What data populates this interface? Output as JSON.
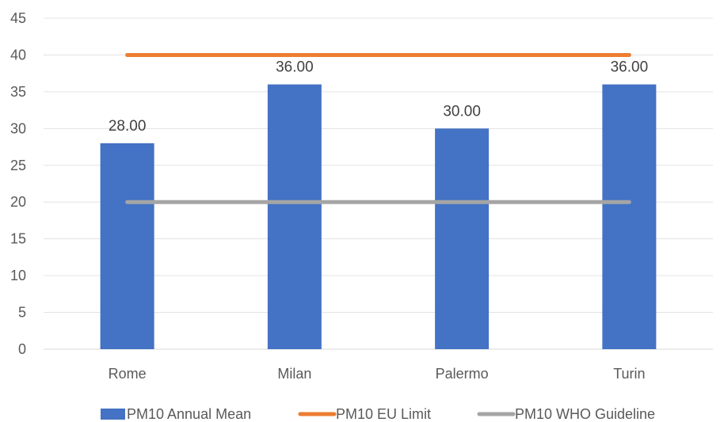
{
  "chart_data": {
    "type": "bar",
    "categories": [
      "Rome",
      "Milan",
      "Palermo",
      "Turin"
    ],
    "series": [
      {
        "name": "PM10 Annual Mean",
        "type": "bar",
        "values": [
          28,
          36,
          30,
          36
        ],
        "color": "#4472C4",
        "data_labels": [
          "28.00",
          "36.00",
          "30.00",
          "36.00"
        ]
      },
      {
        "name": "PM10 EU Limit",
        "type": "line",
        "values": [
          40,
          40,
          40,
          40
        ],
        "color": "#ED7D31"
      },
      {
        "name": "PM10 WHO Guideline",
        "type": "line",
        "values": [
          20,
          20,
          20,
          20
        ],
        "color": "#A5A5A5"
      }
    ],
    "yticks": [
      "0",
      "5",
      "10",
      "15",
      "20",
      "25",
      "30",
      "35",
      "40",
      "45"
    ],
    "ylim": [
      0,
      45
    ],
    "grid": true,
    "legend": "bottom",
    "title": "",
    "xlabel": "",
    "ylabel": ""
  }
}
